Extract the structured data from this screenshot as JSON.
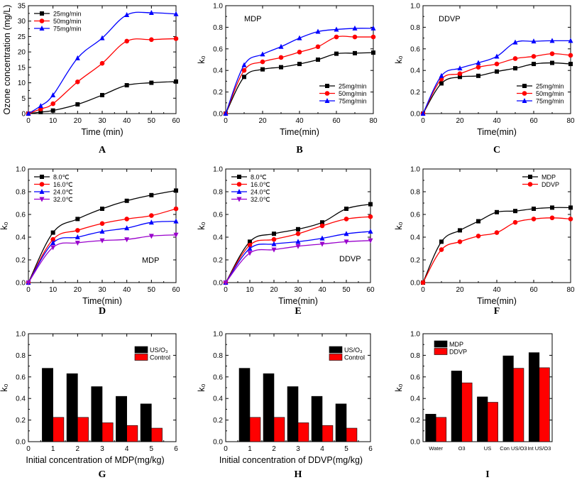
{
  "chart_data": [
    {
      "id": "A",
      "type": "line",
      "panel_label": "A",
      "xlabel": "Time (min)",
      "ylabel": "Ozone concentration (mg/L)",
      "xlim": [
        0,
        60
      ],
      "ylim": [
        0,
        35
      ],
      "xticks": [
        0,
        10,
        20,
        30,
        40,
        50,
        60
      ],
      "yticks": [
        0,
        5,
        10,
        15,
        20,
        25,
        30,
        35
      ],
      "legend": "top-left",
      "series": [
        {
          "name": "25mg/min",
          "color": "#000000",
          "marker": "square",
          "x": [
            0,
            5,
            10,
            20,
            30,
            40,
            50,
            60
          ],
          "y": [
            0,
            0.5,
            1,
            3,
            6,
            9.2,
            10,
            10.4
          ]
        },
        {
          "name": "50mg/min",
          "color": "#ff0000",
          "marker": "circle",
          "x": [
            0,
            5,
            10,
            20,
            30,
            40,
            50,
            60
          ],
          "y": [
            0,
            1.5,
            3.2,
            10.3,
            16.3,
            23.5,
            24,
            24.3
          ]
        },
        {
          "name": "75mg/min",
          "color": "#0000ff",
          "marker": "triangle",
          "x": [
            0,
            5,
            10,
            20,
            30,
            40,
            50,
            60
          ],
          "y": [
            0,
            2.5,
            6,
            18,
            24.5,
            32,
            32.7,
            32.3
          ]
        }
      ]
    },
    {
      "id": "B",
      "type": "line",
      "panel_label": "B",
      "annotation": "MDP",
      "xlabel": "Time(min)",
      "ylabel": "k₀",
      "xlim": [
        0,
        80
      ],
      "ylim": [
        0,
        1.0
      ],
      "xticks": [
        0,
        20,
        40,
        60,
        80
      ],
      "yticks": [
        0.0,
        0.2,
        0.4,
        0.6,
        0.8,
        1.0
      ],
      "legend": "bottom-right",
      "series": [
        {
          "name": "25mg/min",
          "color": "#000000",
          "marker": "square",
          "x": [
            0,
            10,
            20,
            30,
            40,
            50,
            60,
            70,
            80
          ],
          "y": [
            0,
            0.34,
            0.41,
            0.43,
            0.46,
            0.5,
            0.555,
            0.56,
            0.565
          ]
        },
        {
          "name": "50mg/min",
          "color": "#ff0000",
          "marker": "circle",
          "x": [
            0,
            10,
            20,
            30,
            40,
            50,
            60,
            70,
            80
          ],
          "y": [
            0,
            0.4,
            0.48,
            0.52,
            0.57,
            0.62,
            0.71,
            0.71,
            0.71
          ]
        },
        {
          "name": "75mg/min",
          "color": "#0000ff",
          "marker": "triangle",
          "x": [
            0,
            10,
            20,
            30,
            40,
            50,
            60,
            70,
            80
          ],
          "y": [
            0,
            0.45,
            0.55,
            0.62,
            0.7,
            0.76,
            0.78,
            0.79,
            0.79
          ]
        }
      ]
    },
    {
      "id": "C",
      "type": "line",
      "panel_label": "C",
      "annotation": "DDVP",
      "xlabel": "Time(min)",
      "ylabel": "k₀",
      "xlim": [
        0,
        80
      ],
      "ylim": [
        0,
        1.0
      ],
      "xticks": [
        0,
        20,
        40,
        60,
        80
      ],
      "yticks": [
        0.0,
        0.2,
        0.4,
        0.6,
        0.8,
        1.0
      ],
      "legend": "bottom-right",
      "series": [
        {
          "name": "25mg/min",
          "color": "#000000",
          "marker": "square",
          "x": [
            0,
            10,
            20,
            30,
            40,
            50,
            60,
            70,
            80
          ],
          "y": [
            0,
            0.28,
            0.34,
            0.35,
            0.39,
            0.42,
            0.46,
            0.47,
            0.46
          ]
        },
        {
          "name": "50mg/min",
          "color": "#ff0000",
          "marker": "circle",
          "x": [
            0,
            10,
            20,
            30,
            40,
            50,
            60,
            70,
            80
          ],
          "y": [
            0,
            0.32,
            0.37,
            0.43,
            0.46,
            0.51,
            0.53,
            0.555,
            0.54
          ]
        },
        {
          "name": "75mg/min",
          "color": "#0000ff",
          "marker": "triangle",
          "x": [
            0,
            10,
            20,
            30,
            40,
            50,
            60,
            70,
            80
          ],
          "y": [
            0,
            0.35,
            0.42,
            0.47,
            0.53,
            0.66,
            0.67,
            0.675,
            0.675
          ]
        }
      ]
    },
    {
      "id": "D",
      "type": "line",
      "panel_label": "D",
      "annotation": "MDP",
      "xlabel": "Time(min)",
      "ylabel": "k₀",
      "xlim": [
        0,
        60
      ],
      "ylim": [
        0,
        1.0
      ],
      "xticks": [
        0,
        10,
        20,
        30,
        40,
        50,
        60
      ],
      "yticks": [
        0.0,
        0.2,
        0.4,
        0.6,
        0.8,
        1.0
      ],
      "legend": "top-left",
      "series": [
        {
          "name": "8.0℃",
          "color": "#000000",
          "marker": "square",
          "x": [
            0,
            10,
            20,
            30,
            40,
            50,
            60
          ],
          "y": [
            0,
            0.44,
            0.56,
            0.65,
            0.72,
            0.77,
            0.81
          ]
        },
        {
          "name": "16.0℃",
          "color": "#ff0000",
          "marker": "circle",
          "x": [
            0,
            10,
            20,
            30,
            40,
            50,
            60
          ],
          "y": [
            0,
            0.38,
            0.46,
            0.52,
            0.56,
            0.59,
            0.65
          ]
        },
        {
          "name": "24.0℃",
          "color": "#0000ff",
          "marker": "triangle",
          "x": [
            0,
            10,
            20,
            30,
            40,
            50,
            60
          ],
          "y": [
            0,
            0.35,
            0.4,
            0.45,
            0.48,
            0.53,
            0.54
          ]
        },
        {
          "name": "32.0℃",
          "color": "#9900cc",
          "marker": "triangle-down",
          "x": [
            0,
            10,
            20,
            30,
            40,
            50,
            60
          ],
          "y": [
            0,
            0.31,
            0.35,
            0.37,
            0.38,
            0.41,
            0.42
          ]
        }
      ]
    },
    {
      "id": "E",
      "type": "line",
      "panel_label": "E",
      "annotation": "DDVP",
      "xlabel": "Time(min)",
      "ylabel": "k₀",
      "xlim": [
        0,
        60
      ],
      "ylim": [
        0,
        1.0
      ],
      "xticks": [
        0,
        10,
        20,
        30,
        40,
        50,
        60
      ],
      "yticks": [
        0.0,
        0.2,
        0.4,
        0.6,
        0.8,
        1.0
      ],
      "legend": "top-left",
      "series": [
        {
          "name": "8.0℃",
          "color": "#000000",
          "marker": "square",
          "x": [
            0,
            10,
            20,
            30,
            40,
            50,
            60
          ],
          "y": [
            0,
            0.36,
            0.43,
            0.47,
            0.53,
            0.65,
            0.69
          ]
        },
        {
          "name": "16.0℃",
          "color": "#ff0000",
          "marker": "circle",
          "x": [
            0,
            10,
            20,
            30,
            40,
            50,
            60
          ],
          "y": [
            0,
            0.33,
            0.38,
            0.43,
            0.5,
            0.56,
            0.58
          ]
        },
        {
          "name": "24.0℃",
          "color": "#0000ff",
          "marker": "triangle",
          "x": [
            0,
            10,
            20,
            30,
            40,
            50,
            60
          ],
          "y": [
            0,
            0.3,
            0.34,
            0.36,
            0.39,
            0.43,
            0.45
          ]
        },
        {
          "name": "32.0℃",
          "color": "#9900cc",
          "marker": "triangle-down",
          "x": [
            0,
            10,
            20,
            30,
            40,
            50,
            60
          ],
          "y": [
            0,
            0.26,
            0.29,
            0.32,
            0.34,
            0.36,
            0.37
          ]
        }
      ]
    },
    {
      "id": "F",
      "type": "line",
      "panel_label": "F",
      "xlabel": "Time(min)",
      "ylabel": "k₀",
      "xlim": [
        0,
        80
      ],
      "ylim": [
        0,
        1.0
      ],
      "xticks": [
        0,
        20,
        40,
        60,
        80
      ],
      "yticks": [
        0.0,
        0.2,
        0.4,
        0.6,
        0.8,
        1.0
      ],
      "legend": "top-right",
      "series": [
        {
          "name": "MDP",
          "color": "#000000",
          "marker": "square",
          "x": [
            0,
            10,
            20,
            30,
            40,
            50,
            60,
            70,
            80
          ],
          "y": [
            0,
            0.36,
            0.46,
            0.54,
            0.62,
            0.63,
            0.65,
            0.66,
            0.66
          ]
        },
        {
          "name": "DDVP",
          "color": "#ff0000",
          "marker": "circle",
          "x": [
            0,
            10,
            20,
            30,
            40,
            50,
            60,
            70,
            80
          ],
          "y": [
            0,
            0.29,
            0.36,
            0.41,
            0.44,
            0.53,
            0.56,
            0.57,
            0.56
          ]
        }
      ]
    },
    {
      "id": "G",
      "type": "bar",
      "panel_label": "G",
      "xlabel": "Initial concentration of MDP(mg/kg)",
      "ylabel": "k₀",
      "xlim": [
        0,
        6
      ],
      "ylim": [
        0,
        1.0
      ],
      "xticks": [
        0,
        1,
        2,
        3,
        4,
        5,
        6
      ],
      "yticks": [
        0.0,
        0.2,
        0.4,
        0.6,
        0.8,
        1.0
      ],
      "legend": "top-right",
      "categories": [
        1,
        2,
        3,
        4,
        5
      ],
      "series": [
        {
          "name": "US/O₃",
          "color": "#000000",
          "values": [
            0.68,
            0.63,
            0.51,
            0.42,
            0.35
          ]
        },
        {
          "name": "Control",
          "color": "#ff0000",
          "values": [
            0.225,
            0.225,
            0.175,
            0.15,
            0.125
          ]
        }
      ]
    },
    {
      "id": "H",
      "type": "bar",
      "panel_label": "H",
      "xlabel": "Initial concentration of DDVP(mg/kg)",
      "ylabel": "k₀",
      "xlim": [
        0,
        6
      ],
      "ylim": [
        0,
        1.0
      ],
      "xticks": [
        0,
        1,
        2,
        3,
        4,
        5,
        6
      ],
      "yticks": [
        0.0,
        0.2,
        0.4,
        0.6,
        0.8,
        1.0
      ],
      "legend": "top-right",
      "categories": [
        1,
        2,
        3,
        4,
        5
      ],
      "series": [
        {
          "name": "US/O₃",
          "color": "#000000",
          "values": [
            0.68,
            0.63,
            0.51,
            0.42,
            0.35
          ]
        },
        {
          "name": "Control",
          "color": "#ff0000",
          "values": [
            0.225,
            0.225,
            0.175,
            0.15,
            0.125
          ]
        }
      ]
    },
    {
      "id": "I",
      "type": "bar",
      "panel_label": "I",
      "xlabel": "",
      "ylabel": "k₀",
      "ylim": [
        0,
        1.0
      ],
      "yticks": [
        0.0,
        0.2,
        0.4,
        0.6,
        0.8,
        1.0
      ],
      "legend": "top-left",
      "categories": [
        "Water",
        "O3",
        "US",
        "Con US/O3",
        "Int US/O3"
      ],
      "series": [
        {
          "name": "MDP",
          "color": "#000000",
          "values": [
            0.255,
            0.655,
            0.415,
            0.795,
            0.825
          ]
        },
        {
          "name": "DDVP",
          "color": "#ff0000",
          "values": [
            0.225,
            0.545,
            0.365,
            0.68,
            0.685
          ]
        }
      ]
    }
  ]
}
